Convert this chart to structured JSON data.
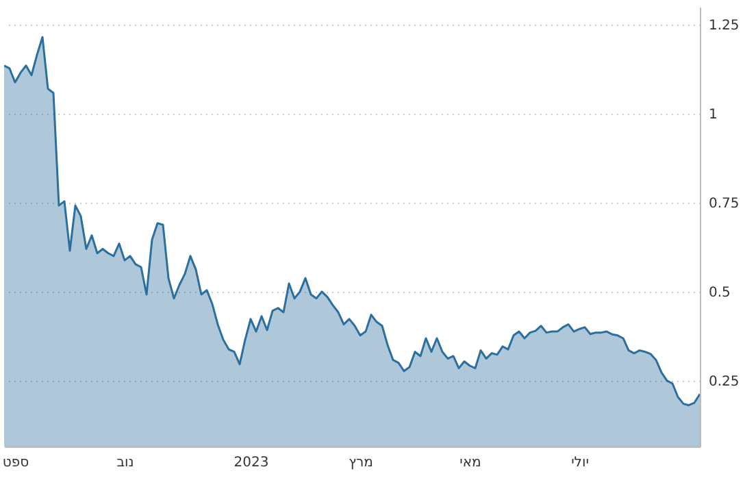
{
  "chart_data": {
    "type": "area",
    "ylim": [
      0.065,
      1.3
    ],
    "yticks": [
      0.25,
      0.5,
      0.75,
      1,
      1.25
    ],
    "grid": "y",
    "categories": [
      null,
      null,
      "ספט",
      null,
      null,
      null,
      null,
      null,
      null,
      null,
      null,
      null,
      null,
      null,
      null,
      null,
      null,
      null,
      null,
      null,
      null,
      null,
      "נוב",
      null,
      null,
      null,
      null,
      null,
      null,
      null,
      null,
      null,
      null,
      null,
      null,
      null,
      null,
      null,
      null,
      null,
      null,
      null,
      null,
      null,
      null,
      "2023",
      null,
      null,
      null,
      null,
      null,
      null,
      null,
      null,
      null,
      null,
      null,
      null,
      null,
      null,
      null,
      null,
      null,
      null,
      null,
      "מרץ",
      null,
      null,
      null,
      null,
      null,
      null,
      null,
      null,
      null,
      null,
      null,
      null,
      null,
      null,
      null,
      null,
      null,
      null,
      null,
      "מאי",
      null,
      null,
      null,
      null,
      null,
      null,
      null,
      null,
      null,
      null,
      null,
      null,
      null,
      null,
      null,
      null,
      null,
      null,
      null,
      "יולי",
      null,
      null,
      null,
      null,
      null,
      null,
      null,
      null,
      null,
      null,
      null,
      null,
      null,
      null,
      null,
      null,
      null,
      null,
      null,
      null,
      null,
      null
    ],
    "series": [
      {
        "color": "#2b6f9e",
        "values": [
          1.135,
          1.127,
          1.088,
          1.115,
          1.135,
          1.108,
          1.165,
          1.215,
          1.07,
          1.058,
          0.742,
          0.754,
          0.615,
          0.742,
          0.712,
          0.62,
          0.658,
          0.608,
          0.62,
          0.608,
          0.6,
          0.635,
          0.588,
          0.6,
          0.577,
          0.569,
          0.492,
          0.646,
          0.692,
          0.688,
          0.538,
          0.481,
          0.519,
          0.55,
          0.6,
          0.562,
          0.492,
          0.504,
          0.465,
          0.408,
          0.365,
          0.338,
          0.331,
          0.296,
          0.365,
          0.423,
          0.388,
          0.431,
          0.392,
          0.446,
          0.454,
          0.442,
          0.523,
          0.481,
          0.5,
          0.538,
          0.492,
          0.481,
          0.5,
          0.485,
          0.462,
          0.442,
          0.408,
          0.423,
          0.404,
          0.377,
          0.388,
          0.435,
          0.415,
          0.404,
          0.35,
          0.308,
          0.3,
          0.277,
          0.288,
          0.331,
          0.319,
          0.369,
          0.331,
          0.369,
          0.331,
          0.312,
          0.319,
          0.285,
          0.304,
          0.292,
          0.285,
          0.335,
          0.312,
          0.327,
          0.323,
          0.346,
          0.338,
          0.377,
          0.388,
          0.369,
          0.385,
          0.39,
          0.404,
          0.385,
          0.388,
          0.388,
          0.4,
          0.408,
          0.388,
          0.395,
          0.4,
          0.381,
          0.385,
          0.385,
          0.388,
          0.38,
          0.377,
          0.369,
          0.335,
          0.327,
          0.335,
          0.331,
          0.325,
          0.308,
          0.273,
          0.25,
          0.242,
          0.204,
          0.185,
          0.181,
          0.188,
          0.212
        ]
      }
    ]
  }
}
